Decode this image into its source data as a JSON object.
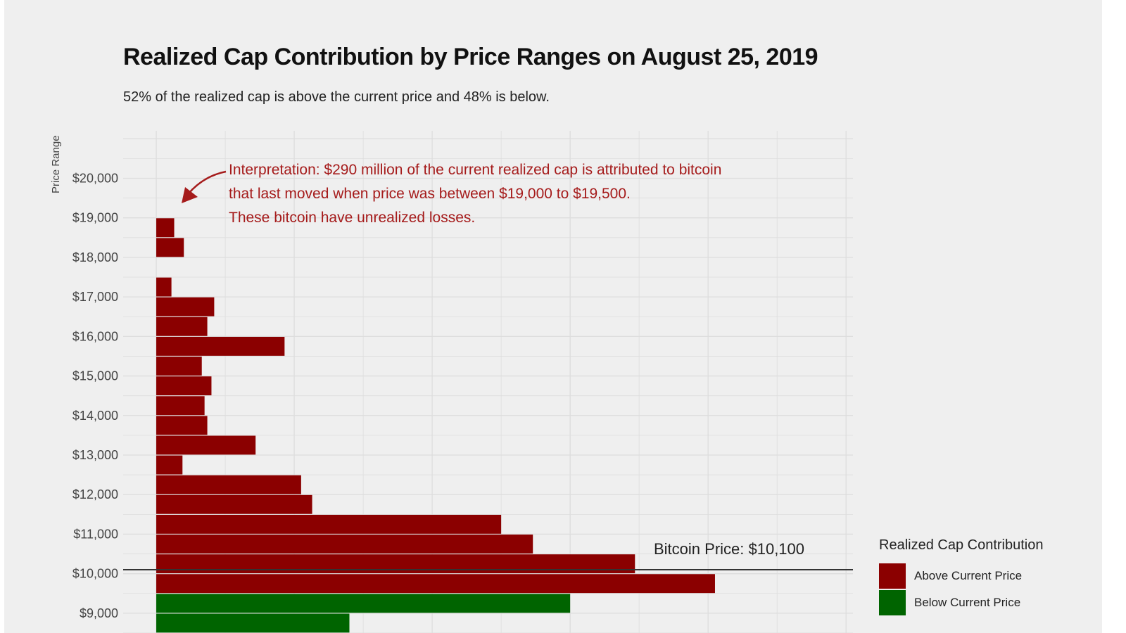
{
  "chart_data": {
    "type": "bar",
    "orientation": "horizontal",
    "title": "Realized Cap Contribution by Price Ranges on August 25, 2019",
    "subtitle": "52% of the realized cap is above the current price and 48% is below.",
    "ylabel": "Price Range",
    "xlabel": "",
    "y_ticks": [
      "$9,000",
      "$10,000",
      "$11,000",
      "$12,000",
      "$13,000",
      "$14,000",
      "$15,000",
      "$16,000",
      "$17,000",
      "$18,000",
      "$19,000",
      "$20,000"
    ],
    "x_tick_labels_shown": false,
    "grid": true,
    "bin_width": 500,
    "bars": [
      {
        "range_low": 8500,
        "range_high": 9000,
        "value": 1.4,
        "group": "Below Current Price"
      },
      {
        "range_low": 9000,
        "range_high": 9500,
        "value": 3.0,
        "group": "Below Current Price"
      },
      {
        "range_low": 9500,
        "range_high": 10000,
        "value": 4.05,
        "group": "Above Current Price"
      },
      {
        "range_low": 10000,
        "range_high": 10500,
        "value": 3.47,
        "group": "Above Current Price"
      },
      {
        "range_low": 10500,
        "range_high": 11000,
        "value": 2.73,
        "group": "Above Current Price"
      },
      {
        "range_low": 11000,
        "range_high": 11500,
        "value": 2.5,
        "group": "Above Current Price"
      },
      {
        "range_low": 11500,
        "range_high": 12000,
        "value": 1.13,
        "group": "Above Current Price"
      },
      {
        "range_low": 12000,
        "range_high": 12500,
        "value": 1.05,
        "group": "Above Current Price"
      },
      {
        "range_low": 12500,
        "range_high": 13000,
        "value": 0.19,
        "group": "Above Current Price"
      },
      {
        "range_low": 13000,
        "range_high": 13500,
        "value": 0.72,
        "group": "Above Current Price"
      },
      {
        "range_low": 13500,
        "range_high": 14000,
        "value": 0.37,
        "group": "Above Current Price"
      },
      {
        "range_low": 14000,
        "range_high": 14500,
        "value": 0.35,
        "group": "Above Current Price"
      },
      {
        "range_low": 14500,
        "range_high": 15000,
        "value": 0.4,
        "group": "Above Current Price"
      },
      {
        "range_low": 15000,
        "range_high": 15500,
        "value": 0.33,
        "group": "Above Current Price"
      },
      {
        "range_low": 15500,
        "range_high": 16000,
        "value": 0.93,
        "group": "Above Current Price"
      },
      {
        "range_low": 16000,
        "range_high": 16500,
        "value": 0.37,
        "group": "Above Current Price"
      },
      {
        "range_low": 16500,
        "range_high": 17000,
        "value": 0.42,
        "group": "Above Current Price"
      },
      {
        "range_low": 17000,
        "range_high": 17500,
        "value": 0.11,
        "group": "Above Current Price"
      },
      {
        "range_low": 18000,
        "range_high": 18500,
        "value": 0.2,
        "group": "Above Current Price"
      },
      {
        "range_low": 18500,
        "range_high": 19000,
        "value": 0.13,
        "group": "Above Current Price"
      }
    ],
    "x_range": [
      -0.24,
      5.05
    ],
    "y_range": [
      8500,
      21200
    ],
    "current_price": 10100,
    "current_price_label": "Bitcoin Price: $10,100",
    "annotation": [
      "Interpretation: $290 million of the current realized cap is attributed to bitcoin",
      "that last moved when price was between $19,000 to $19,500.",
      "These bitcoin have unrealized losses."
    ],
    "legend": {
      "title": "Realized Cap Contribution",
      "position": "bottom-right",
      "items": [
        {
          "label": "Above Current Price",
          "color": "#8b0000"
        },
        {
          "label": "Below Current Price",
          "color": "#006400"
        }
      ]
    },
    "colors": {
      "Above Current Price": "#8b0000",
      "Below Current Price": "#006400",
      "annotation": "#a51b1b"
    }
  }
}
